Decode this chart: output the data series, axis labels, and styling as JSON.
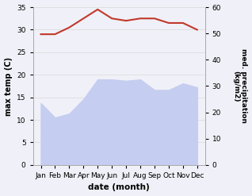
{
  "months": [
    "Jan",
    "Feb",
    "Mar",
    "Apr",
    "May",
    "Jun",
    "Jul",
    "Aug",
    "Sep",
    "Oct",
    "Nov",
    "Dec"
  ],
  "max_temp": [
    29.0,
    29.0,
    30.5,
    32.5,
    34.5,
    32.5,
    32.0,
    32.5,
    32.5,
    31.5,
    31.5,
    30.0
  ],
  "precipitation": [
    23.5,
    18.0,
    19.5,
    25.0,
    32.5,
    32.5,
    32.0,
    32.5,
    28.5,
    28.5,
    31.0,
    29.5
  ],
  "temp_color": "#c0392b",
  "precip_fill_color": "#c5cdf0",
  "temp_ylim": [
    0,
    35
  ],
  "precip_ylim": [
    0,
    60
  ],
  "temp_yticks": [
    0,
    5,
    10,
    15,
    20,
    25,
    30,
    35
  ],
  "precip_yticks": [
    0,
    10,
    20,
    30,
    40,
    50,
    60
  ],
  "xlabel": "date (month)",
  "ylabel_left": "max temp (C)",
  "ylabel_right": "med. precipitation\n(kg/m2)",
  "bg_color": "#f0f0f8",
  "grid_color": "#d8d8d8",
  "line_width": 1.5
}
